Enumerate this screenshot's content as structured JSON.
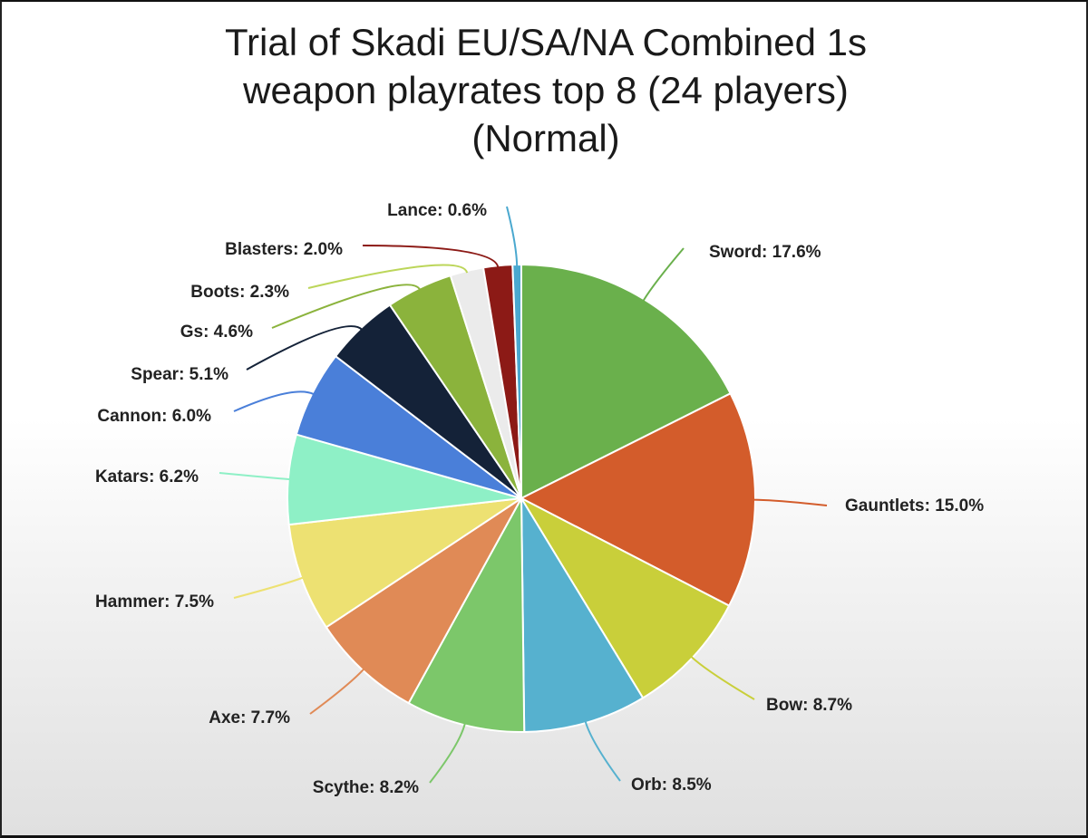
{
  "chart_data": {
    "type": "pie",
    "title_lines": [
      "Trial of Skadi EU/SA/NA Combined 1s",
      "weapon playrates top 8 (24 players)",
      "(Normal)"
    ],
    "slices": [
      {
        "label": "Sword: 17.6%",
        "value": 17.6,
        "color": "#6ab04c"
      },
      {
        "label": "Gauntlets: 15.0%",
        "value": 15.0,
        "color": "#d35c2b"
      },
      {
        "label": "Bow: 8.7%",
        "value": 8.7,
        "color": "#c9cf3a"
      },
      {
        "label": "Orb: 8.5%",
        "value": 8.5,
        "color": "#56b1cf"
      },
      {
        "label": "Scythe: 8.2%",
        "value": 8.2,
        "color": "#7cc76a"
      },
      {
        "label": "Axe: 7.7%",
        "value": 7.7,
        "color": "#e08a56"
      },
      {
        "label": "Hammer: 7.5%",
        "value": 7.5,
        "color": "#ede172"
      },
      {
        "label": "Katars: 6.2%",
        "value": 6.2,
        "color": "#8ef0c6"
      },
      {
        "label": "Cannon: 6.0%",
        "value": 6.0,
        "color": "#4a7fd9"
      },
      {
        "label": "Spear: 5.1%",
        "value": 5.1,
        "color": "#142238"
      },
      {
        "label": "Gs: 4.6%",
        "value": 4.6,
        "color": "#8bb33c"
      },
      {
        "label": "Boots: 2.3%",
        "value": 2.3,
        "color": "#ebebeb"
      },
      {
        "label": "Blasters: 2.0%",
        "value": 2.0,
        "color": "#8c1a16"
      },
      {
        "label": "Lance: 0.6%",
        "value": 0.6,
        "color": "#4aa8cf"
      }
    ],
    "start_angle_deg": 0,
    "direction": "clockwise",
    "legend": "none"
  }
}
